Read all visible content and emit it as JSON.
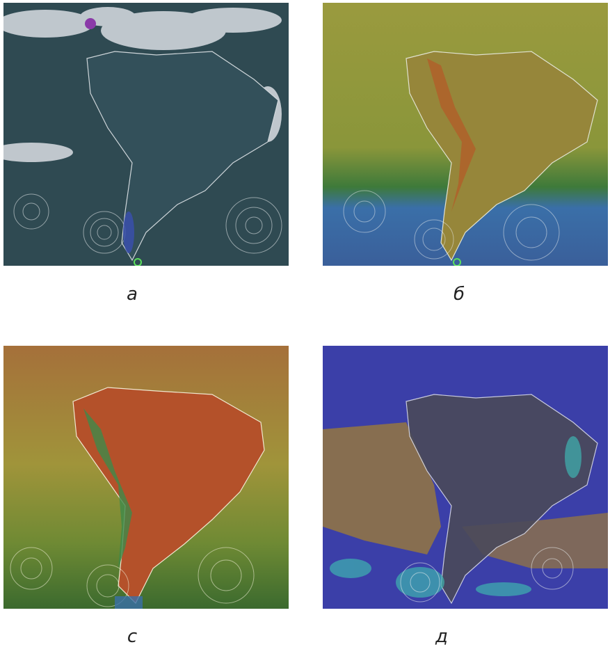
{
  "panels": [
    {
      "id": "a",
      "caption": "а",
      "ocean": "#2f4a52",
      "land": "#33505a",
      "cloud": "#d9dde3",
      "swirl": "#e8ecee"
    },
    {
      "id": "b",
      "caption": "б",
      "ocean": "#8f9a3a",
      "land": "#96863a",
      "accent": "#b0602a",
      "south": "#3a6fa8",
      "swirl": "#e8ecee"
    },
    {
      "id": "c",
      "caption": "c",
      "ocean": "#a58a3a",
      "land": "#b4512a",
      "accent": "#3e8a4a",
      "south": "#3b7a2e",
      "swirl": "#f2f0d8"
    },
    {
      "id": "d",
      "caption": "д",
      "ocean": "#3b3fa8",
      "land": "#4a4a5a",
      "accent": "#9b7a3a",
      "cyan": "#3fb3b0",
      "swirl": "#e8ecee"
    }
  ]
}
